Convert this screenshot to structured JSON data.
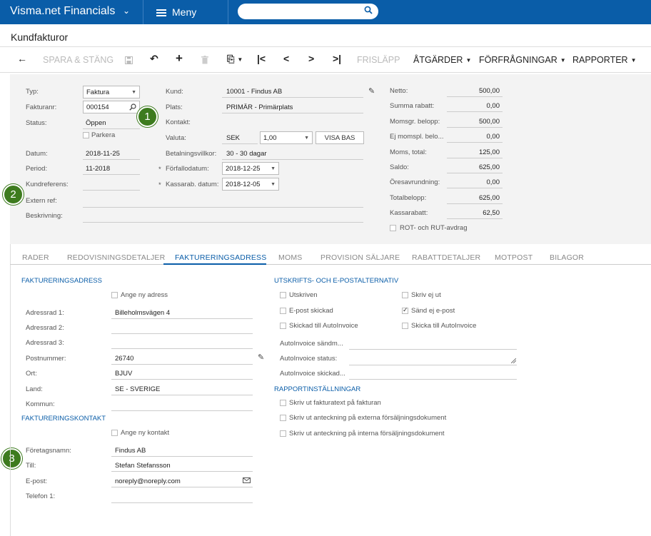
{
  "header": {
    "app_title": "Visma.net Financials",
    "menu_label": "Meny",
    "search_placeholder": ""
  },
  "page_title": "Kundfakturor",
  "toolbar": {
    "save_close": "SPARA & STÄNG",
    "release": "FRISLÄPP",
    "actions": "ÅTGÄRDER",
    "inquiries": "FÖRFRÅGNINGAR",
    "reports": "RAPPORTER"
  },
  "form": {
    "type_label": "Typ:",
    "type_value": "Faktura",
    "invoice_no_label": "Fakturanr:",
    "invoice_no_value": "000154",
    "status_label": "Status:",
    "status_value": "Öppen",
    "park_label": "Parkera",
    "date_label": "Datum:",
    "date_value": "2018-11-25",
    "period_label": "Period:",
    "period_value": "11-2018",
    "customer_ref_label": "Kundreferens:",
    "external_ref_label": "Extern ref:",
    "description_label": "Beskrivning:",
    "customer_label": "Kund:",
    "customer_value": "10001 - Findus AB",
    "location_label": "Plats:",
    "location_value": "PRIMÄR - Primärplats",
    "contact_label": "Kontakt:",
    "currency_label": "Valuta:",
    "currency_value": "SEK",
    "rate_value": "1,00",
    "base_button": "VISA BAS",
    "payment_terms_label": "Betalningsvillkor:",
    "payment_terms_value": "30 - 30 dagar",
    "due_date_label": "Förfallodatum:",
    "due_date_value": "2018-12-25",
    "cash_disc_date_label": "Kassarab. datum:",
    "cash_disc_date_value": "2018-12-05",
    "required_mark": "*"
  },
  "totals": [
    {
      "label": "Netto:",
      "value": "500,00"
    },
    {
      "label": "Summa rabatt:",
      "value": "0,00"
    },
    {
      "label": "Momsgr. belopp:",
      "value": "500,00"
    },
    {
      "label": "Ej momspl. belo...",
      "value": "0,00"
    },
    {
      "label": "Moms, total:",
      "value": "125,00"
    },
    {
      "label": "Saldo:",
      "value": "625,00"
    },
    {
      "label": "Öresavrundning:",
      "value": "0,00"
    },
    {
      "label": "Totalbelopp:",
      "value": "625,00"
    },
    {
      "label": "Kassarabatt:",
      "value": "62,50"
    }
  ],
  "rot_rut_label": "ROT- och RUT-avdrag",
  "tabs": [
    "RADER",
    "REDOVISNINGSDETALJER",
    "FAKTURERINGSADRESS",
    "MOMS",
    "PROVISION SÄLJARE",
    "RABATTDETALJER",
    "MOTPOST",
    "BILAGOR"
  ],
  "billing_address": {
    "section": "FAKTURERINGSADRESS",
    "new_address": "Ange ny adress",
    "addr1_label": "Adressrad 1:",
    "addr1_value": "Billeholmsvägen 4",
    "addr2_label": "Adressrad 2:",
    "addr3_label": "Adressrad 3:",
    "zip_label": "Postnummer:",
    "zip_value": "26740",
    "city_label": "Ort:",
    "city_value": "BJUV",
    "country_label": "Land:",
    "country_value": "SE - SVERIGE",
    "municipality_label": "Kommun:"
  },
  "billing_contact": {
    "section": "FAKTURERINGSKONTAKT",
    "new_contact": "Ange ny kontakt",
    "company_label": "Företagsnamn:",
    "company_value": "Findus AB",
    "to_label": "Till:",
    "to_value": "Stefan Stefansson",
    "email_label": "E-post:",
    "email_value": "noreply@noreply.com",
    "phone_label": "Telefon 1:"
  },
  "print_options": {
    "section": "UTSKRIFTS- OCH E-POSTALTERNATIV",
    "printed": "Utskriven",
    "dont_print": "Skriv ej ut",
    "email_sent": "E-post skickad",
    "dont_email": "Sänd ej e-post",
    "sent_autoinvoice": "Skickad till AutoInvoice",
    "send_autoinvoice": "Skicka till AutoInvoice",
    "ai_msg": "AutoInvoice sändm...",
    "ai_status": "AutoInvoice status:",
    "ai_sent": "AutoInvoice skickad..."
  },
  "report_settings": {
    "section": "RAPPORTINSTÄLLNINGAR",
    "opt1": "Skriv ut fakturatext på fakturan",
    "opt2": "Skriv ut anteckning på externa försäljningsdokument",
    "opt3": "Skriv ut anteckning på interna försäljningsdokument"
  },
  "badges": [
    "1",
    "2",
    "3"
  ],
  "colors": {
    "brand": "#0a5da8",
    "badge": "#3d7b1e",
    "form_bg": "#f3f3f3"
  }
}
